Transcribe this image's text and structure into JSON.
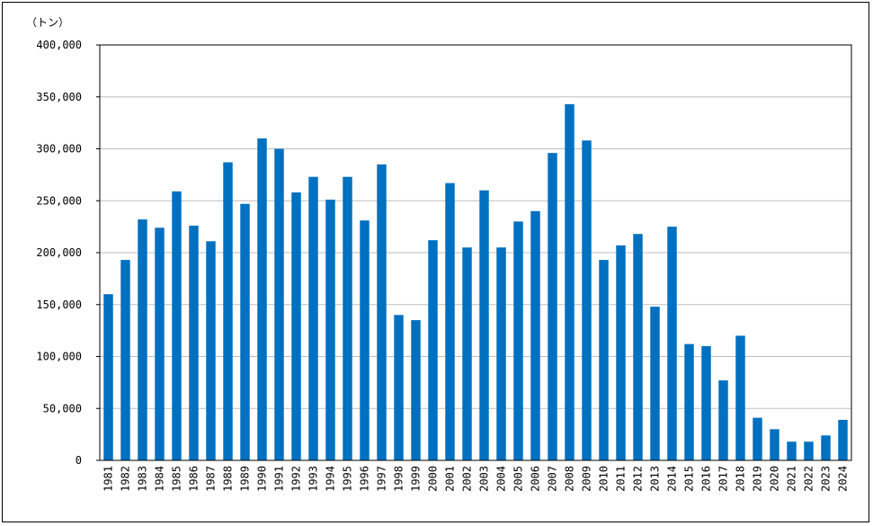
{
  "chart_data": {
    "type": "bar",
    "title": "",
    "xlabel": "",
    "ylabel": "",
    "unit_label": "（トン）",
    "ylim": [
      0,
      400000
    ],
    "y_ticks": [
      0,
      50000,
      100000,
      150000,
      200000,
      250000,
      300000,
      350000,
      400000
    ],
    "y_tick_labels": [
      "0",
      "50,000",
      "100,000",
      "150,000",
      "200,000",
      "250,000",
      "300,000",
      "350,000",
      "400,000"
    ],
    "grid": true,
    "legend": "none",
    "bar_color": "#0070C0",
    "categories": [
      "1981",
      "1982",
      "1983",
      "1984",
      "1985",
      "1986",
      "1987",
      "1988",
      "1989",
      "1990",
      "1991",
      "1992",
      "1993",
      "1994",
      "1995",
      "1996",
      "1997",
      "1998",
      "1999",
      "2000",
      "2001",
      "2002",
      "2003",
      "2004",
      "2005",
      "2006",
      "2007",
      "2008",
      "2009",
      "2010",
      "2011",
      "2012",
      "2013",
      "2014",
      "2015",
      "2016",
      "2017",
      "2018",
      "2019",
      "2020",
      "2021",
      "2022",
      "2023",
      "2024"
    ],
    "values": [
      160000,
      193000,
      232000,
      224000,
      259000,
      226000,
      211000,
      287000,
      247000,
      310000,
      300000,
      258000,
      273000,
      251000,
      273000,
      231000,
      285000,
      140000,
      135000,
      212000,
      267000,
      205000,
      260000,
      205000,
      230000,
      240000,
      296000,
      343000,
      308000,
      193000,
      207000,
      218000,
      148000,
      225000,
      112000,
      110000,
      77000,
      120000,
      41000,
      30000,
      18000,
      18000,
      24000,
      39000
    ]
  }
}
